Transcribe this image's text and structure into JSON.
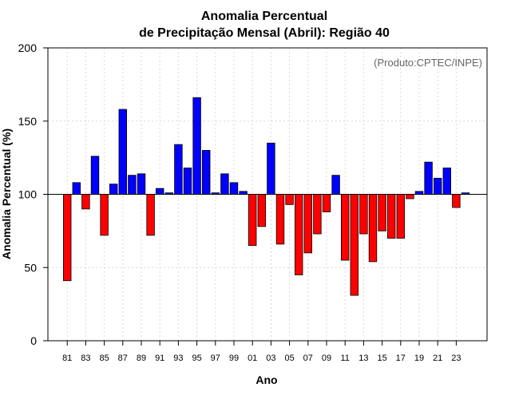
{
  "chart_data": {
    "type": "bar",
    "title_line1": "Anomalia Percentual",
    "title_line2": "de Precipitação Mensal (Abril): Região 40",
    "xlabel": "Ano",
    "ylabel": "Anomalia Percentual (%)",
    "annotation": "(Produto:CPTEC/INPE)",
    "ylim": [
      0,
      200
    ],
    "yticks": [
      0,
      50,
      100,
      150,
      200
    ],
    "baseline": 100,
    "grid": true,
    "colors": {
      "above": "#0000ff",
      "below": "#ff0000",
      "edge": "#000000"
    },
    "categories": [
      "81",
      "82",
      "83",
      "84",
      "85",
      "86",
      "87",
      "88",
      "89",
      "90",
      "91",
      "92",
      "93",
      "94",
      "95",
      "96",
      "97",
      "98",
      "99",
      "00",
      "01",
      "02",
      "03",
      "04",
      "05",
      "06",
      "07",
      "08",
      "09",
      "10",
      "11",
      "12",
      "13",
      "14",
      "15",
      "16",
      "17",
      "18",
      "19",
      "20",
      "21",
      "22",
      "23",
      "24"
    ],
    "xtick_labels": [
      "81",
      "83",
      "85",
      "87",
      "89",
      "91",
      "93",
      "95",
      "97",
      "99",
      "01",
      "03",
      "05",
      "07",
      "09",
      "11",
      "13",
      "15",
      "17",
      "19",
      "21",
      "23"
    ],
    "values": [
      41,
      108,
      90,
      126,
      72,
      107,
      158,
      113,
      114,
      72,
      104,
      101,
      134,
      118,
      166,
      130,
      101,
      114,
      108,
      102,
      65,
      78,
      135,
      66,
      93,
      45,
      60,
      73,
      88,
      113,
      55,
      31,
      73,
      54,
      75,
      70,
      70,
      97,
      102,
      122,
      111,
      118,
      91,
      101
    ]
  }
}
